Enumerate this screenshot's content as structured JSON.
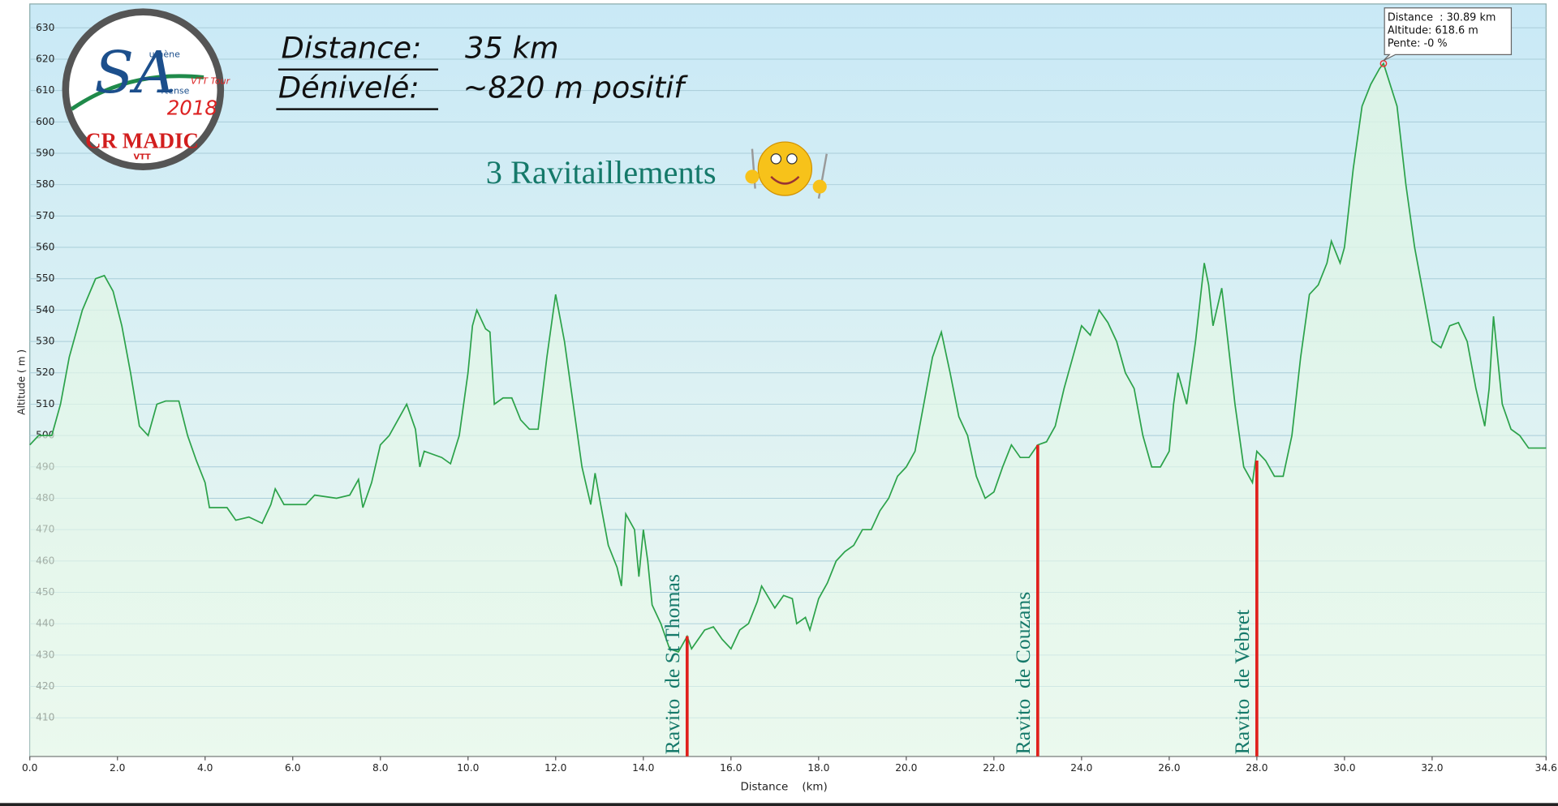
{
  "chart_data": {
    "type": "area",
    "x_label": "Distance    (km)",
    "y_label": "Altitude ( m )",
    "x": [
      0,
      0.2,
      0.5,
      0.7,
      0.9,
      1.2,
      1.5,
      1.7,
      1.9,
      2.1,
      2.3,
      2.5,
      2.7,
      2.9,
      3.1,
      3.4,
      3.6,
      3.8,
      4.0,
      4.1,
      4.5,
      4.7,
      5.0,
      5.3,
      5.5,
      5.6,
      5.8,
      6.3,
      6.5,
      7.0,
      7.3,
      7.5,
      7.6,
      7.8,
      8.0,
      8.2,
      8.4,
      8.6,
      8.8,
      8.9,
      9.0,
      9.4,
      9.6,
      9.8,
      10.0,
      10.1,
      10.2,
      10.4,
      10.5,
      10.6,
      10.8,
      11.0,
      11.2,
      11.4,
      11.6,
      11.8,
      12.0,
      12.2,
      12.4,
      12.6,
      12.8,
      12.9,
      13.0,
      13.2,
      13.4,
      13.5,
      13.6,
      13.8,
      13.9,
      14.0,
      14.1,
      14.2,
      14.4,
      14.6,
      14.8,
      15.0,
      15.1,
      15.4,
      15.6,
      15.8,
      16.0,
      16.2,
      16.4,
      16.6,
      16.7,
      17.0,
      17.2,
      17.4,
      17.5,
      17.7,
      17.8,
      18.0,
      18.2,
      18.4,
      18.6,
      18.8,
      19.0,
      19.2,
      19.4,
      19.6,
      19.8,
      20.0,
      20.2,
      20.4,
      20.6,
      20.8,
      21.0,
      21.2,
      21.4,
      21.6,
      21.8,
      22.0,
      22.2,
      22.4,
      22.6,
      22.8,
      23.0,
      23.2,
      23.4,
      23.6,
      23.8,
      24.0,
      24.2,
      24.4,
      24.6,
      24.8,
      25.0,
      25.2,
      25.4,
      25.6,
      25.8,
      26.0,
      26.1,
      26.2,
      26.4,
      26.6,
      26.8,
      26.9,
      27.0,
      27.2,
      27.3,
      27.5,
      27.7,
      27.9,
      28.0,
      28.2,
      28.4,
      28.6,
      28.8,
      29.0,
      29.2,
      29.4,
      29.6,
      29.7,
      29.9,
      30.0,
      30.2,
      30.4,
      30.6,
      30.8,
      30.89,
      31.2,
      31.4,
      31.6,
      31.8,
      32.0,
      32.2,
      32.4,
      32.6,
      32.8,
      33.0,
      33.2,
      33.3,
      33.4,
      33.6,
      33.8,
      34.0,
      34.2,
      34.6
    ],
    "values": [
      497,
      500,
      500,
      510,
      525,
      540,
      550,
      551,
      546,
      535,
      520,
      503,
      500,
      510,
      511,
      511,
      500,
      492,
      485,
      477,
      477,
      473,
      474,
      472,
      478,
      483,
      478,
      478,
      481,
      480,
      481,
      486,
      477,
      485,
      497,
      500,
      505,
      510,
      502,
      490,
      495,
      493,
      491,
      500,
      520,
      535,
      540,
      534,
      533,
      510,
      512,
      512,
      505,
      502,
      502,
      525,
      545,
      530,
      510,
      490,
      478,
      488,
      480,
      465,
      458,
      452,
      475,
      470,
      455,
      470,
      460,
      446,
      440,
      432,
      431,
      436,
      432,
      438,
      439,
      435,
      432,
      438,
      440,
      447,
      452,
      445,
      449,
      448,
      440,
      442,
      438,
      448,
      453,
      460,
      463,
      465,
      470,
      470,
      476,
      480,
      487,
      490,
      495,
      510,
      525,
      533,
      520,
      506,
      500,
      487,
      480,
      482,
      490,
      497,
      493,
      493,
      497,
      498,
      503,
      515,
      525,
      535,
      532,
      540,
      536,
      530,
      520,
      515,
      500,
      490,
      490,
      495,
      510,
      520,
      510,
      530,
      555,
      548,
      535,
      547,
      535,
      510,
      490,
      485,
      495,
      492,
      487,
      487,
      500,
      525,
      545,
      548,
      555,
      562,
      555,
      560,
      585,
      605,
      612,
      617,
      618.6,
      605,
      580,
      560,
      545,
      530,
      528,
      535,
      536,
      530,
      515,
      503,
      515,
      538,
      510,
      502,
      500,
      496,
      496
    ],
    "color": "#2ca24a",
    "xlim": [
      0,
      34.6
    ],
    "ylim": [
      397.7,
      637.6
    ],
    "xticks": [
      {
        "value": 0,
        "label": "0.0"
      },
      {
        "value": 2,
        "label": "2.0"
      },
      {
        "value": 4,
        "label": "4.0"
      },
      {
        "value": 6,
        "label": "6.0"
      },
      {
        "value": 8,
        "label": "8.0"
      },
      {
        "value": 10,
        "label": "10.0"
      },
      {
        "value": 12,
        "label": "12.0"
      },
      {
        "value": 14,
        "label": "14.0"
      },
      {
        "value": 16,
        "label": "16.0"
      },
      {
        "value": 18,
        "label": "18.0"
      },
      {
        "value": 20,
        "label": "20.0"
      },
      {
        "value": 22,
        "label": "22.0"
      },
      {
        "value": 24,
        "label": "24.0"
      },
      {
        "value": 26,
        "label": "26.0"
      },
      {
        "value": 28,
        "label": "28.0"
      },
      {
        "value": 30,
        "label": "30.0"
      },
      {
        "value": 32,
        "label": "32.0"
      },
      {
        "value": 34.6,
        "label": "34.6"
      }
    ],
    "yticks": [
      410,
      420,
      430,
      440,
      450,
      460,
      470,
      480,
      490,
      500,
      510,
      520,
      530,
      540,
      550,
      560,
      570,
      580,
      590,
      600,
      610,
      620,
      630
    ],
    "grid": true,
    "annotations": [
      {
        "label": "Ravito  de St Thomas",
        "x": 15.0,
        "y": 436,
        "color": "#e0201c"
      },
      {
        "label": "Ravito  de Couzans",
        "x": 23.0,
        "y": 497,
        "color": "#e0201c"
      },
      {
        "label": "Ravito  de Vebret",
        "x": 28.0,
        "y": 492,
        "color": "#e0201c"
      }
    ],
    "tooltip": {
      "point": 160,
      "lines": [
        "Distance  : 30.89 km",
        "Altitude: 618.6 m",
        "Pente: -0 %"
      ]
    },
    "overlay": {
      "distance_label": "Distance:",
      "distance_value": "35 km",
      "denivele_label": "Dénivelé:",
      "denivele_value": "~820 m positif",
      "ravitaillements": "3 Ravitaillements"
    },
    "logo": {
      "letters": "SA",
      "aumene": "umène",
      "artense": "rtense",
      "tour": "VTT Tour",
      "year": "2018",
      "club": "CR MADIC",
      "vtt": "VTT"
    }
  }
}
